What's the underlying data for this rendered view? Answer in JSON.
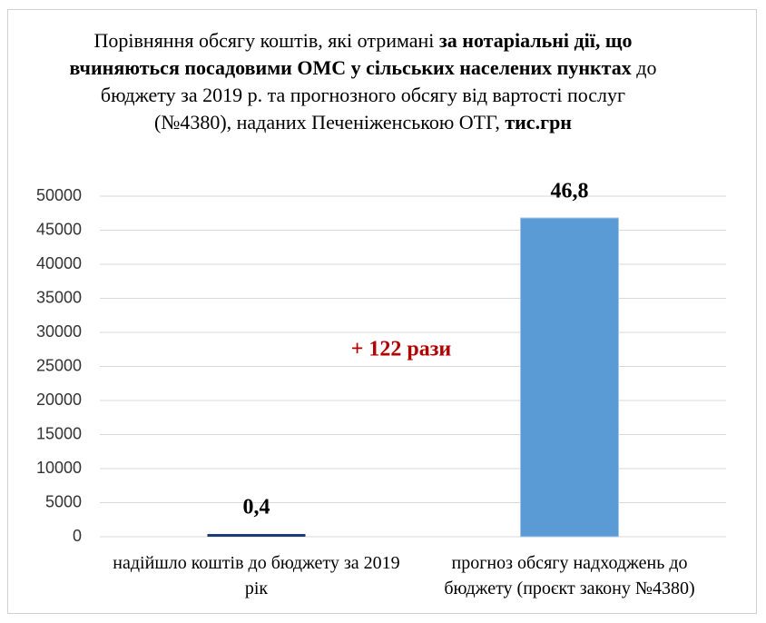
{
  "chart_data": {
    "type": "bar",
    "title_runs": [
      {
        "text": "Порівняння обсягу коштів, які отримані ",
        "bold": false
      },
      {
        "text": "за нотаріальні дії, що вчиняються посадовими ОМС у сільських населених пунктах",
        "bold": true
      },
      {
        "text": " до бюджету за 2019 р. та прогнозного обсягу від вартості послуг (№4380), наданих Печеніженською ОТГ, ",
        "bold": false
      },
      {
        "text": "тис.грн",
        "bold": true
      }
    ],
    "categories": [
      "надійшло коштів до бюджету за 2019 рік",
      "прогноз обсягу надходжень до бюджету (проєкт закону №4380)"
    ],
    "values": [
      400,
      46800
    ],
    "value_labels": [
      "0,4",
      "46,8"
    ],
    "colors": [
      "#1f3b73",
      "#5b9bd5"
    ],
    "annotation": "+ 122 рази",
    "annotation_color": "#b00000",
    "ylim": [
      0,
      50000
    ],
    "yticks": [
      0,
      5000,
      10000,
      15000,
      20000,
      25000,
      30000,
      35000,
      40000,
      45000,
      50000
    ],
    "grid": true
  }
}
